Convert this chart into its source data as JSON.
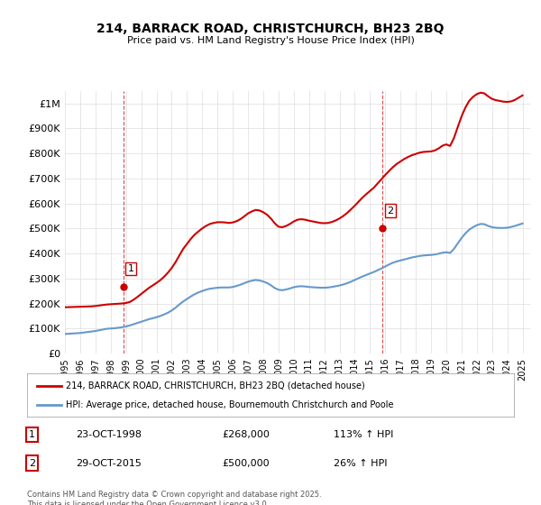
{
  "title": "214, BARRACK ROAD, CHRISTCHURCH, BH23 2BQ",
  "subtitle": "Price paid vs. HM Land Registry's House Price Index (HPI)",
  "background_color": "#ffffff",
  "plot_bg_color": "#ffffff",
  "grid_color": "#dddddd",
  "red_line_color": "#cc0000",
  "blue_line_color": "#6699cc",
  "dashed_line_color": "#cc0000",
  "sale1_date_num": 1998.82,
  "sale1_price": 268000,
  "sale1_label": "1",
  "sale1_date_str": "23-OCT-1998",
  "sale1_pct": "113%",
  "sale2_date_num": 2015.83,
  "sale2_price": 500000,
  "sale2_label": "2",
  "sale2_date_str": "29-OCT-2015",
  "sale2_pct": "26%",
  "ylabel_top": "£1M",
  "legend_line1": "214, BARRACK ROAD, CHRISTCHURCH, BH23 2BQ (detached house)",
  "legend_line2": "HPI: Average price, detached house, Bournemouth Christchurch and Poole",
  "footer": "Contains HM Land Registry data © Crown copyright and database right 2025.\nThis data is licensed under the Open Government Licence v3.0.",
  "hpi_x": [
    1995.0,
    1995.25,
    1995.5,
    1995.75,
    1996.0,
    1996.25,
    1996.5,
    1996.75,
    1997.0,
    1997.25,
    1997.5,
    1997.75,
    1998.0,
    1998.25,
    1998.5,
    1998.75,
    1999.0,
    1999.25,
    1999.5,
    1999.75,
    2000.0,
    2000.25,
    2000.5,
    2000.75,
    2001.0,
    2001.25,
    2001.5,
    2001.75,
    2002.0,
    2002.25,
    2002.5,
    2002.75,
    2003.0,
    2003.25,
    2003.5,
    2003.75,
    2004.0,
    2004.25,
    2004.5,
    2004.75,
    2005.0,
    2005.25,
    2005.5,
    2005.75,
    2006.0,
    2006.25,
    2006.5,
    2006.75,
    2007.0,
    2007.25,
    2007.5,
    2007.75,
    2008.0,
    2008.25,
    2008.5,
    2008.75,
    2009.0,
    2009.25,
    2009.5,
    2009.75,
    2010.0,
    2010.25,
    2010.5,
    2010.75,
    2011.0,
    2011.25,
    2011.5,
    2011.75,
    2012.0,
    2012.25,
    2012.5,
    2012.75,
    2013.0,
    2013.25,
    2013.5,
    2013.75,
    2014.0,
    2014.25,
    2014.5,
    2014.75,
    2015.0,
    2015.25,
    2015.5,
    2015.75,
    2016.0,
    2016.25,
    2016.5,
    2016.75,
    2017.0,
    2017.25,
    2017.5,
    2017.75,
    2018.0,
    2018.25,
    2018.5,
    2018.75,
    2019.0,
    2019.25,
    2019.5,
    2019.75,
    2020.0,
    2020.25,
    2020.5,
    2020.75,
    2021.0,
    2021.25,
    2021.5,
    2021.75,
    2022.0,
    2022.25,
    2022.5,
    2022.75,
    2023.0,
    2023.25,
    2023.5,
    2023.75,
    2024.0,
    2024.25,
    2024.5,
    2024.75,
    2025.0
  ],
  "hpi_y": [
    78000,
    79000,
    80000,
    81000,
    82000,
    84000,
    86000,
    88000,
    90000,
    93000,
    96000,
    99000,
    100000,
    101000,
    103000,
    105000,
    108000,
    112000,
    117000,
    122000,
    127000,
    132000,
    137000,
    141000,
    145000,
    150000,
    156000,
    163000,
    172000,
    183000,
    196000,
    208000,
    218000,
    228000,
    237000,
    244000,
    250000,
    255000,
    259000,
    261000,
    263000,
    264000,
    264000,
    264000,
    266000,
    270000,
    275000,
    281000,
    287000,
    291000,
    294000,
    292000,
    288000,
    282000,
    273000,
    262000,
    255000,
    253000,
    256000,
    260000,
    265000,
    268000,
    269000,
    268000,
    266000,
    265000,
    264000,
    263000,
    263000,
    264000,
    266000,
    269000,
    272000,
    276000,
    281000,
    287000,
    294000,
    301000,
    308000,
    314000,
    320000,
    326000,
    333000,
    340000,
    348000,
    356000,
    363000,
    368000,
    372000,
    376000,
    380000,
    384000,
    387000,
    390000,
    392000,
    393000,
    394000,
    396000,
    399000,
    403000,
    405000,
    402000,
    418000,
    440000,
    462000,
    480000,
    495000,
    505000,
    513000,
    518000,
    517000,
    510000,
    505000,
    503000,
    502000,
    502000,
    503000,
    506000,
    510000,
    515000,
    520000
  ],
  "red_x": [
    1995.0,
    1995.25,
    1995.5,
    1995.75,
    1996.0,
    1996.25,
    1996.5,
    1996.75,
    1997.0,
    1997.25,
    1997.5,
    1997.75,
    1998.0,
    1998.25,
    1998.5,
    1998.75,
    1999.0,
    1999.25,
    1999.5,
    1999.75,
    2000.0,
    2000.25,
    2000.5,
    2000.75,
    2001.0,
    2001.25,
    2001.5,
    2001.75,
    2002.0,
    2002.25,
    2002.5,
    2002.75,
    2003.0,
    2003.25,
    2003.5,
    2003.75,
    2004.0,
    2004.25,
    2004.5,
    2004.75,
    2005.0,
    2005.25,
    2005.5,
    2005.75,
    2006.0,
    2006.25,
    2006.5,
    2006.75,
    2007.0,
    2007.25,
    2007.5,
    2007.75,
    2008.0,
    2008.25,
    2008.5,
    2008.75,
    2009.0,
    2009.25,
    2009.5,
    2009.75,
    2010.0,
    2010.25,
    2010.5,
    2010.75,
    2011.0,
    2011.25,
    2011.5,
    2011.75,
    2012.0,
    2012.25,
    2012.5,
    2012.75,
    2013.0,
    2013.25,
    2013.5,
    2013.75,
    2014.0,
    2014.25,
    2014.5,
    2014.75,
    2015.0,
    2015.25,
    2015.5,
    2015.75,
    2016.0,
    2016.25,
    2016.5,
    2016.75,
    2017.0,
    2017.25,
    2017.5,
    2017.75,
    2018.0,
    2018.25,
    2018.5,
    2018.75,
    2019.0,
    2019.25,
    2019.5,
    2019.75,
    2020.0,
    2020.25,
    2020.5,
    2020.75,
    2021.0,
    2021.25,
    2021.5,
    2021.75,
    2022.0,
    2022.25,
    2022.5,
    2022.75,
    2023.0,
    2023.25,
    2023.5,
    2023.75,
    2024.0,
    2024.25,
    2024.5,
    2024.75,
    2025.0
  ],
  "red_y": [
    185000,
    185500,
    186000,
    186500,
    187000,
    187500,
    188000,
    188500,
    190000,
    192000,
    194000,
    196000,
    197000,
    198000,
    199000,
    200000,
    202000,
    206000,
    215000,
    226000,
    238000,
    250000,
    262000,
    272000,
    282000,
    293000,
    307000,
    323000,
    342000,
    365000,
    392000,
    418000,
    438000,
    458000,
    475000,
    488000,
    500000,
    510000,
    518000,
    522000,
    525000,
    525000,
    524000,
    522000,
    524000,
    529000,
    537000,
    548000,
    560000,
    568000,
    574000,
    572000,
    565000,
    555000,
    540000,
    521000,
    507000,
    505000,
    510000,
    518000,
    528000,
    535000,
    537000,
    535000,
    531000,
    528000,
    525000,
    522000,
    521000,
    522000,
    526000,
    532000,
    540000,
    550000,
    562000,
    576000,
    591000,
    607000,
    623000,
    637000,
    650000,
    663000,
    680000,
    697000,
    714000,
    730000,
    745000,
    758000,
    768000,
    778000,
    786000,
    793000,
    798000,
    803000,
    806000,
    807000,
    808000,
    812000,
    820000,
    831000,
    836000,
    830000,
    861000,
    905000,
    948000,
    983000,
    1010000,
    1026000,
    1037000,
    1043000,
    1040000,
    1028000,
    1018000,
    1013000,
    1010000,
    1007000,
    1006000,
    1008000,
    1014000,
    1023000,
    1032000
  ],
  "xlim": [
    1995.0,
    2025.5
  ],
  "ylim": [
    0,
    1050000
  ],
  "yticks": [
    0,
    100000,
    200000,
    300000,
    400000,
    500000,
    600000,
    700000,
    800000,
    900000,
    1000000
  ],
  "ytick_labels": [
    "£0",
    "£100K",
    "£200K",
    "£300K",
    "£400K",
    "£500K",
    "£600K",
    "£700K",
    "£800K",
    "£900K",
    "£1M"
  ],
  "xtick_years": [
    1995,
    1996,
    1997,
    1998,
    1999,
    2000,
    2001,
    2002,
    2003,
    2004,
    2005,
    2006,
    2007,
    2008,
    2009,
    2010,
    2011,
    2012,
    2013,
    2014,
    2015,
    2016,
    2017,
    2018,
    2019,
    2020,
    2021,
    2022,
    2023,
    2024,
    2025
  ]
}
